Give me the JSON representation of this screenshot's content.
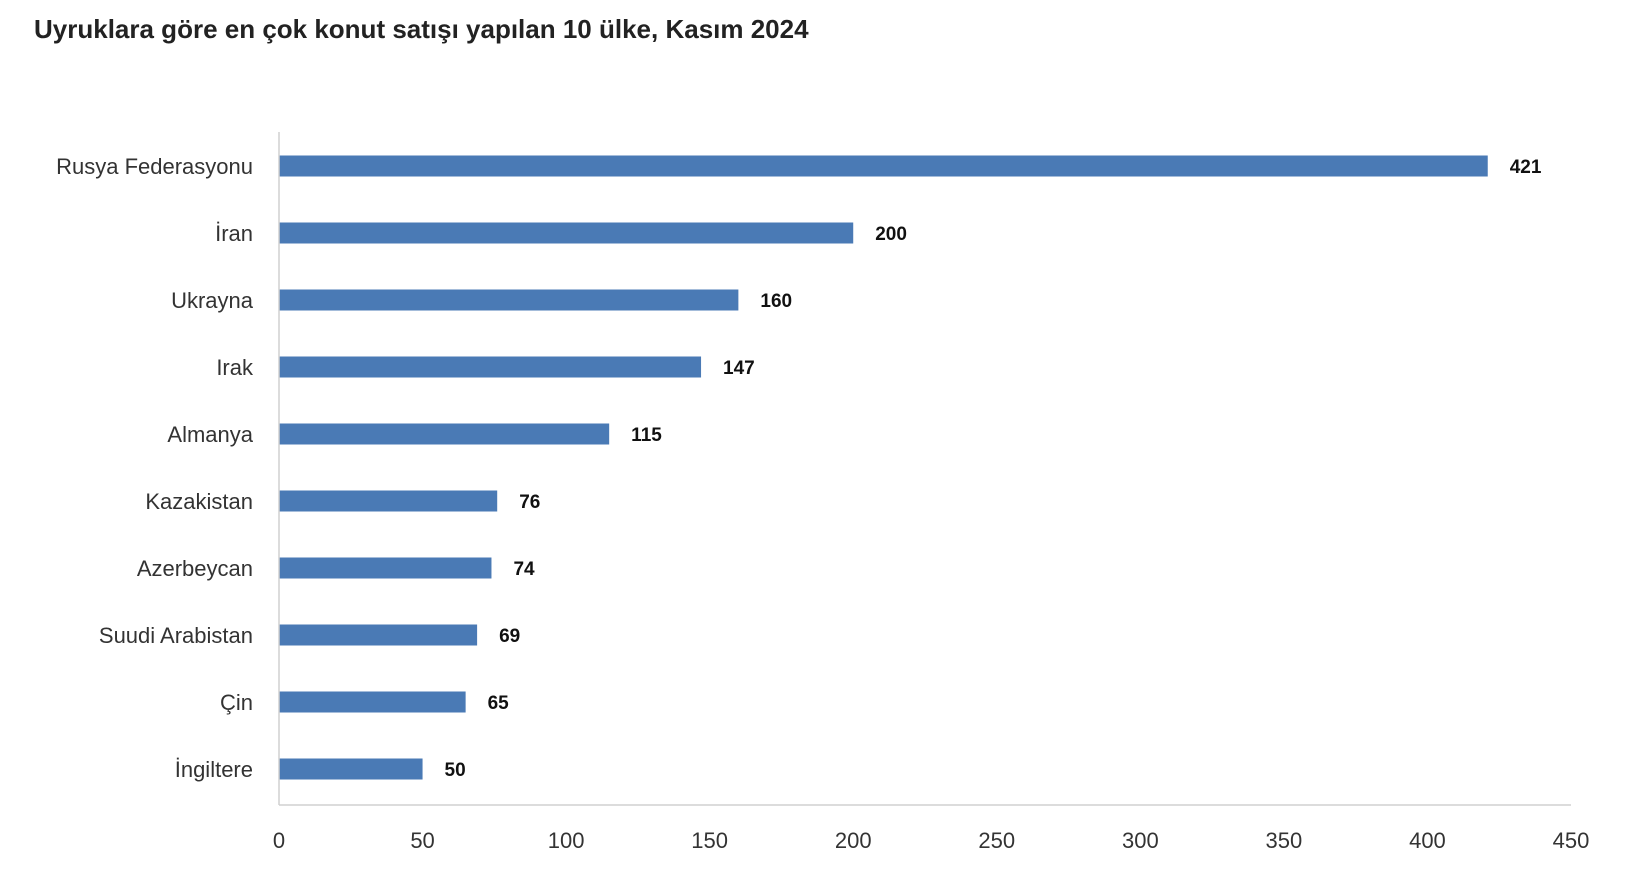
{
  "chart_data": {
    "type": "bar",
    "orientation": "horizontal",
    "title": "Uyruklara göre en çok konut satışı yapılan 10 ülke, Kasım 2024",
    "categories": [
      "Rusya Federasyonu",
      "İran",
      "Ukrayna",
      "Irak",
      "Almanya",
      "Kazakistan",
      "Azerbeycan",
      "Suudi Arabistan",
      "Çin",
      "İngiltere"
    ],
    "values": [
      421,
      200,
      160,
      147,
      115,
      76,
      74,
      69,
      65,
      50
    ],
    "xlim": [
      0,
      450
    ],
    "xticks": [
      0,
      50,
      100,
      150,
      200,
      250,
      300,
      350,
      400,
      450
    ],
    "xlabel": "",
    "ylabel": "",
    "grid": false,
    "legend": "none",
    "data_labels": true,
    "bar_color": "#4a7ab5"
  }
}
